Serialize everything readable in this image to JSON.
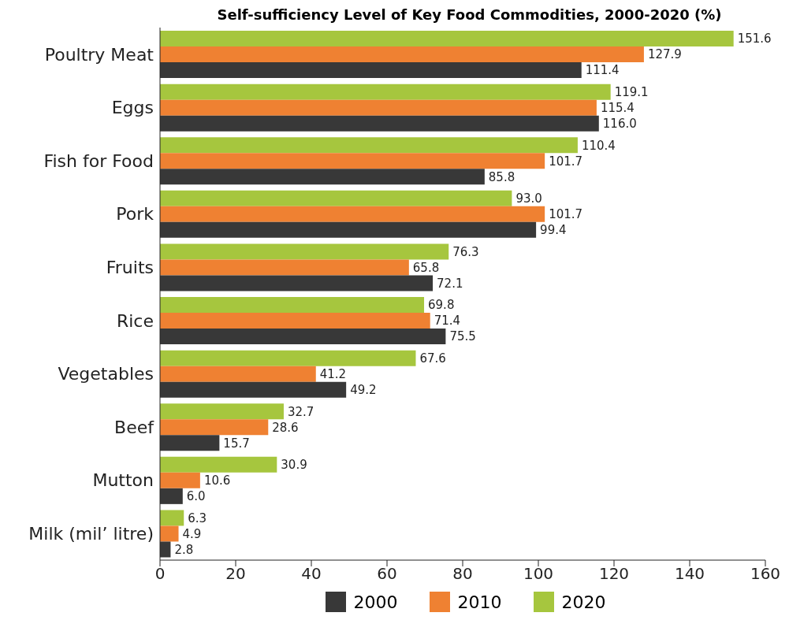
{
  "chart_data": {
    "type": "bar",
    "orientation": "horizontal",
    "title": "Self-sufficiency Level of Key Food Commodities, 2000-2020 (%)",
    "categories": [
      "Poultry Meat",
      "Eggs",
      "Fish for Food",
      "Pork",
      "Fruits",
      "Rice",
      "Vegetables",
      "Beef",
      "Mutton",
      "Milk (mil’ litre)"
    ],
    "series": [
      {
        "name": "2000",
        "color": "#383838",
        "values": [
          111.4,
          116.0,
          85.8,
          99.4,
          72.1,
          75.5,
          49.2,
          15.7,
          6.0,
          2.8
        ],
        "value_labels": [
          "111.4",
          "116.0",
          "85.8",
          "99.4",
          "72.1",
          "75.5",
          "49.2",
          "15.7",
          "6.0",
          "2.8"
        ]
      },
      {
        "name": "2010",
        "color": "#ef8132",
        "values": [
          127.9,
          115.4,
          101.7,
          101.7,
          65.8,
          71.4,
          41.2,
          28.6,
          10.6,
          4.9
        ],
        "value_labels": [
          "127.9",
          "115.4",
          "101.7",
          "101.7",
          "65.8",
          "71.4",
          "41.2",
          "28.6",
          "10.6",
          "4.9"
        ]
      },
      {
        "name": "2020",
        "color": "#a6c63e",
        "values": [
          151.6,
          119.1,
          110.4,
          93.0,
          76.3,
          69.8,
          67.6,
          32.7,
          30.9,
          6.3
        ],
        "value_labels": [
          "151.6",
          "119.1",
          "110.4",
          "93.0",
          "76.3",
          "69.8",
          "67.6",
          "32.7",
          "30.9",
          "6.3"
        ]
      }
    ],
    "xlim": [
      0,
      160
    ],
    "xticks": [
      0,
      20,
      40,
      60,
      80,
      100,
      120,
      140,
      160
    ],
    "grid": false,
    "legend": "bottom"
  }
}
